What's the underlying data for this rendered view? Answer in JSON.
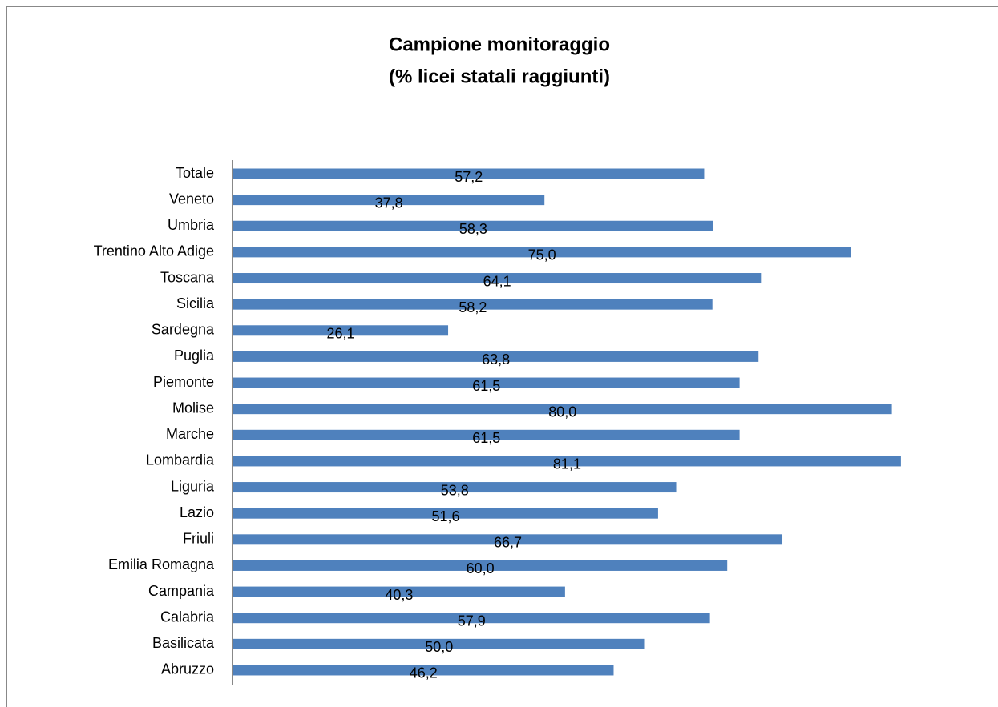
{
  "chart_data": {
    "type": "bar",
    "orientation": "horizontal",
    "title": "Campione monitoraggio",
    "subtitle": "(% licei statali raggiunti)",
    "categories": [
      "Totale",
      "Veneto",
      "Umbria",
      "Trentino Alto Adige",
      "Toscana",
      "Sicilia",
      "Sardegna",
      "Puglia",
      "Piemonte",
      "Molise",
      "Marche",
      "Lombardia",
      "Liguria",
      "Lazio",
      "Friuli",
      "Emilia Romagna",
      "Campania",
      "Calabria",
      "Basilicata",
      "Abruzzo"
    ],
    "values": [
      57.2,
      37.8,
      58.3,
      75.0,
      64.1,
      58.2,
      26.1,
      63.8,
      61.5,
      80.0,
      61.5,
      81.1,
      53.8,
      51.6,
      66.7,
      60.0,
      40.3,
      57.9,
      50.0,
      46.2
    ],
    "value_labels": [
      "57,2",
      "37,8",
      "58,3",
      "75,0",
      "64,1",
      "58,2",
      "26,1",
      "63,8",
      "61,5",
      "80,0",
      "61,5",
      "81,1",
      "53,8",
      "51,6",
      "66,7",
      "60,0",
      "40,3",
      "57,9",
      "50,0",
      "46,2"
    ],
    "color": "#4f81bd"
  }
}
